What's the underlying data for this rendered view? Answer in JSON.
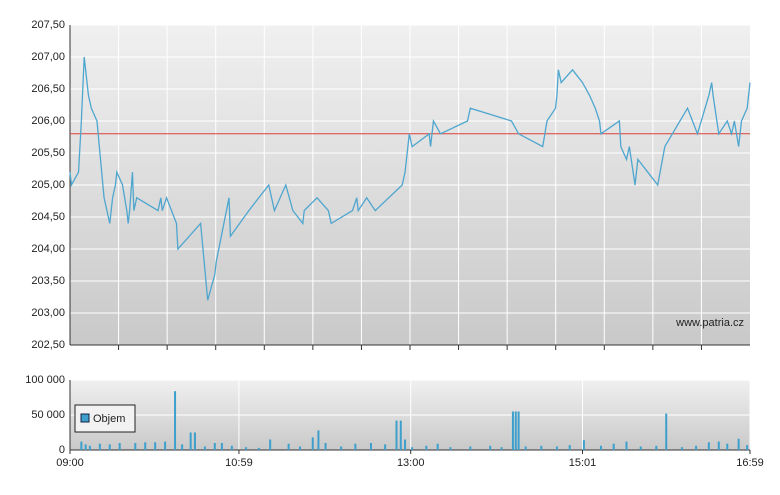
{
  "chart_data": [
    {
      "type": "line",
      "color": "#4ea6cf",
      "reference_line": 205.8,
      "reference_color": "#d9413a",
      "watermark": "www.patria.cz",
      "grid": true,
      "xlim": [
        "09:00",
        "16:59"
      ],
      "ylim": [
        202.5,
        207.5
      ],
      "yticks": [
        {
          "value": 202.5,
          "label": "202,50"
        },
        {
          "value": 203,
          "label": "203,00"
        },
        {
          "value": 203.5,
          "label": "203,50"
        },
        {
          "value": 204,
          "label": "204,00"
        },
        {
          "value": 204.5,
          "label": "204,50"
        },
        {
          "value": 205,
          "label": "205,00"
        },
        {
          "value": 205.5,
          "label": "205,50"
        },
        {
          "value": 206,
          "label": "206,00"
        },
        {
          "value": 206.5,
          "label": "206,50"
        },
        {
          "value": 207,
          "label": "207,00"
        },
        {
          "value": 207.5,
          "label": "207,50"
        }
      ],
      "x": [
        "09:00",
        "09:01",
        "09:06",
        "09:08",
        "09:10",
        "09:13",
        "09:15",
        "09:19",
        "09:24",
        "09:28",
        "09:30",
        "09:32",
        "09:33",
        "09:37",
        "09:40",
        "09:41",
        "09:42",
        "09:44",
        "09:45",
        "09:47",
        "10:02",
        "10:04",
        "10:05",
        "10:08",
        "10:15",
        "10:16",
        "10:32",
        "10:37",
        "10:42",
        "10:43",
        "10:52",
        "10:53",
        "11:06",
        "11:20",
        "11:24",
        "11:32",
        "11:37",
        "11:44",
        "11:45",
        "11:54",
        "12:02",
        "12:04",
        "12:19",
        "12:22",
        "12:23",
        "12:29",
        "12:35",
        "12:54",
        "12:56",
        "12:59",
        "13:01",
        "13:13",
        "13:14",
        "13:16",
        "13:21",
        "13:40",
        "13:42",
        "14:11",
        "14:16",
        "14:33",
        "14:36",
        "14:42",
        "14:43",
        "14:44",
        "14:46",
        "14:54",
        "15:01",
        "15:06",
        "15:10",
        "15:13",
        "15:14",
        "15:27",
        "15:28",
        "15:32",
        "15:34",
        "15:38",
        "15:40",
        "15:47",
        "15:54",
        "15:59",
        "16:15",
        "16:22",
        "16:30",
        "16:32",
        "16:33",
        "16:37",
        "16:43",
        "16:46",
        "16:48",
        "16:51",
        "16:53",
        "16:57",
        "16:59"
      ],
      "values": [
        205.2,
        205.0,
        205.2,
        206.0,
        207.0,
        206.4,
        206.2,
        206.0,
        204.8,
        204.4,
        204.8,
        205.0,
        205.2,
        205.0,
        204.6,
        204.4,
        204.6,
        205.2,
        204.6,
        204.8,
        204.6,
        204.8,
        204.6,
        204.8,
        204.4,
        204.0,
        204.4,
        203.2,
        203.6,
        203.8,
        204.8,
        204.2,
        204.6,
        205.0,
        204.6,
        205.0,
        204.6,
        204.4,
        204.6,
        204.8,
        204.6,
        204.4,
        204.6,
        204.8,
        204.6,
        204.8,
        204.6,
        205.0,
        205.2,
        205.8,
        205.6,
        205.8,
        205.6,
        206.0,
        205.8,
        206.0,
        206.2,
        206.0,
        205.8,
        205.6,
        206.0,
        206.2,
        206.4,
        206.8,
        206.6,
        206.8,
        206.6,
        206.4,
        206.2,
        206.0,
        205.8,
        206.0,
        205.6,
        205.4,
        205.6,
        205.0,
        205.4,
        205.2,
        205.0,
        205.6,
        206.2,
        205.8,
        206.4,
        206.6,
        206.4,
        205.8,
        206.0,
        205.8,
        206.0,
        205.6,
        206.0,
        206.2,
        206.6
      ]
    },
    {
      "type": "bar",
      "grid": true,
      "xlim": [
        "09:00",
        "16:59"
      ],
      "xticks": [
        "09:00",
        "10:59",
        "13:00",
        "15:01",
        "16:59"
      ],
      "ylim": [
        0,
        100000
      ],
      "yticks": [
        0,
        {
          "value": 50000,
          "label": "50 000"
        },
        {
          "value": 100000,
          "label": "100 000"
        }
      ],
      "x": [
        "09:08",
        "09:11",
        "09:14",
        "09:21",
        "09:28",
        "09:35",
        "09:46",
        "09:53",
        "10:00",
        "10:07",
        "10:14",
        "10:19",
        "10:25",
        "10:28",
        "10:35",
        "10:42",
        "10:47",
        "10:54",
        "11:04",
        "11:13",
        "11:21",
        "11:34",
        "11:42",
        "11:51",
        "11:55",
        "12:00",
        "12:11",
        "12:21",
        "12:32",
        "12:42",
        "12:50",
        "12:53",
        "12:56",
        "13:01",
        "13:11",
        "13:19",
        "13:28",
        "13:42",
        "13:56",
        "14:04",
        "14:12",
        "14:14",
        "14:16",
        "14:21",
        "14:32",
        "14:43",
        "14:52",
        "15:02",
        "15:14",
        "15:23",
        "15:32",
        "15:42",
        "15:53",
        "16:00",
        "16:11",
        "16:21",
        "16:30",
        "16:37",
        "16:43",
        "16:51",
        "16:57"
      ],
      "series": [
        {
          "name": "Objem",
          "color": "#3d9fcb",
          "values": [
            12000,
            8000,
            6000,
            9000,
            8000,
            10000,
            10000,
            11000,
            11000,
            12000,
            84000,
            8000,
            25000,
            25000,
            5000,
            10000,
            10000,
            6000,
            4000,
            3000,
            15000,
            9000,
            5000,
            18000,
            28000,
            10000,
            5000,
            9000,
            10000,
            8000,
            42000,
            42000,
            15000,
            4000,
            6000,
            9000,
            4000,
            5000,
            6000,
            4000,
            55000,
            55000,
            55000,
            5000,
            6000,
            5000,
            7000,
            14000,
            6000,
            9000,
            12000,
            5000,
            6000,
            52000,
            4000,
            6000,
            11000,
            12000,
            9000,
            16000,
            7000
          ]
        }
      ]
    }
  ]
}
